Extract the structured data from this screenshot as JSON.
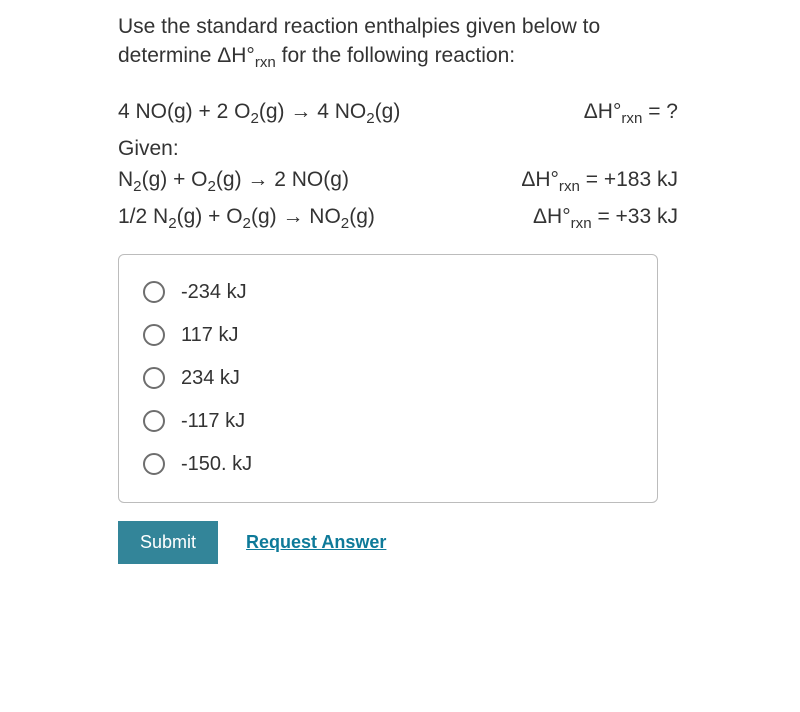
{
  "question": {
    "prompt_line1": "Use the standard reaction enthalpies given below to",
    "prompt_line2_prefix": "determine ΔH°",
    "prompt_line2_sub": "rxn",
    "prompt_line2_suffix": " for the following reaction:"
  },
  "target_reaction": {
    "lhs": "4 NO(g) + 2 O",
    "lhs_sub1": "2",
    "lhs_mid": "(g)   → 4 NO",
    "lhs_sub2": "2",
    "lhs_end": "(g)",
    "rhs_prefix": "ΔH°",
    "rhs_sub": "rxn",
    "rhs_suffix": " =  ?"
  },
  "given_label": "Given:",
  "given1": {
    "lhs_a": "N",
    "lhs_sub1": "2",
    "lhs_b": "(g) + O",
    "lhs_sub2": "2",
    "lhs_c": "(g)   → 2 NO(g)",
    "rhs_prefix": "ΔH°",
    "rhs_sub": "rxn",
    "rhs_suffix": " = +183 kJ"
  },
  "given2": {
    "lhs_a": "1/2 N",
    "lhs_sub1": "2",
    "lhs_b": "(g) + O",
    "lhs_sub2": "2",
    "lhs_c": "(g)   → NO",
    "lhs_sub3": "2",
    "lhs_d": "(g)",
    "rhs_prefix": "ΔH°",
    "rhs_sub": "rxn",
    "rhs_suffix": " = +33 kJ"
  },
  "options": {
    "o1": "-234 kJ",
    "o2": "117 kJ",
    "o3": "234 kJ",
    "o4": "-117 kJ",
    "o5": "-150. kJ"
  },
  "actions": {
    "submit": "Submit",
    "request": "Request Answer"
  },
  "colors": {
    "submit_bg": "#338599",
    "link": "#0e7a99",
    "border": "#bcbcbc",
    "radio_border": "#6e6e6e",
    "text": "#333333",
    "background": "#ffffff"
  }
}
